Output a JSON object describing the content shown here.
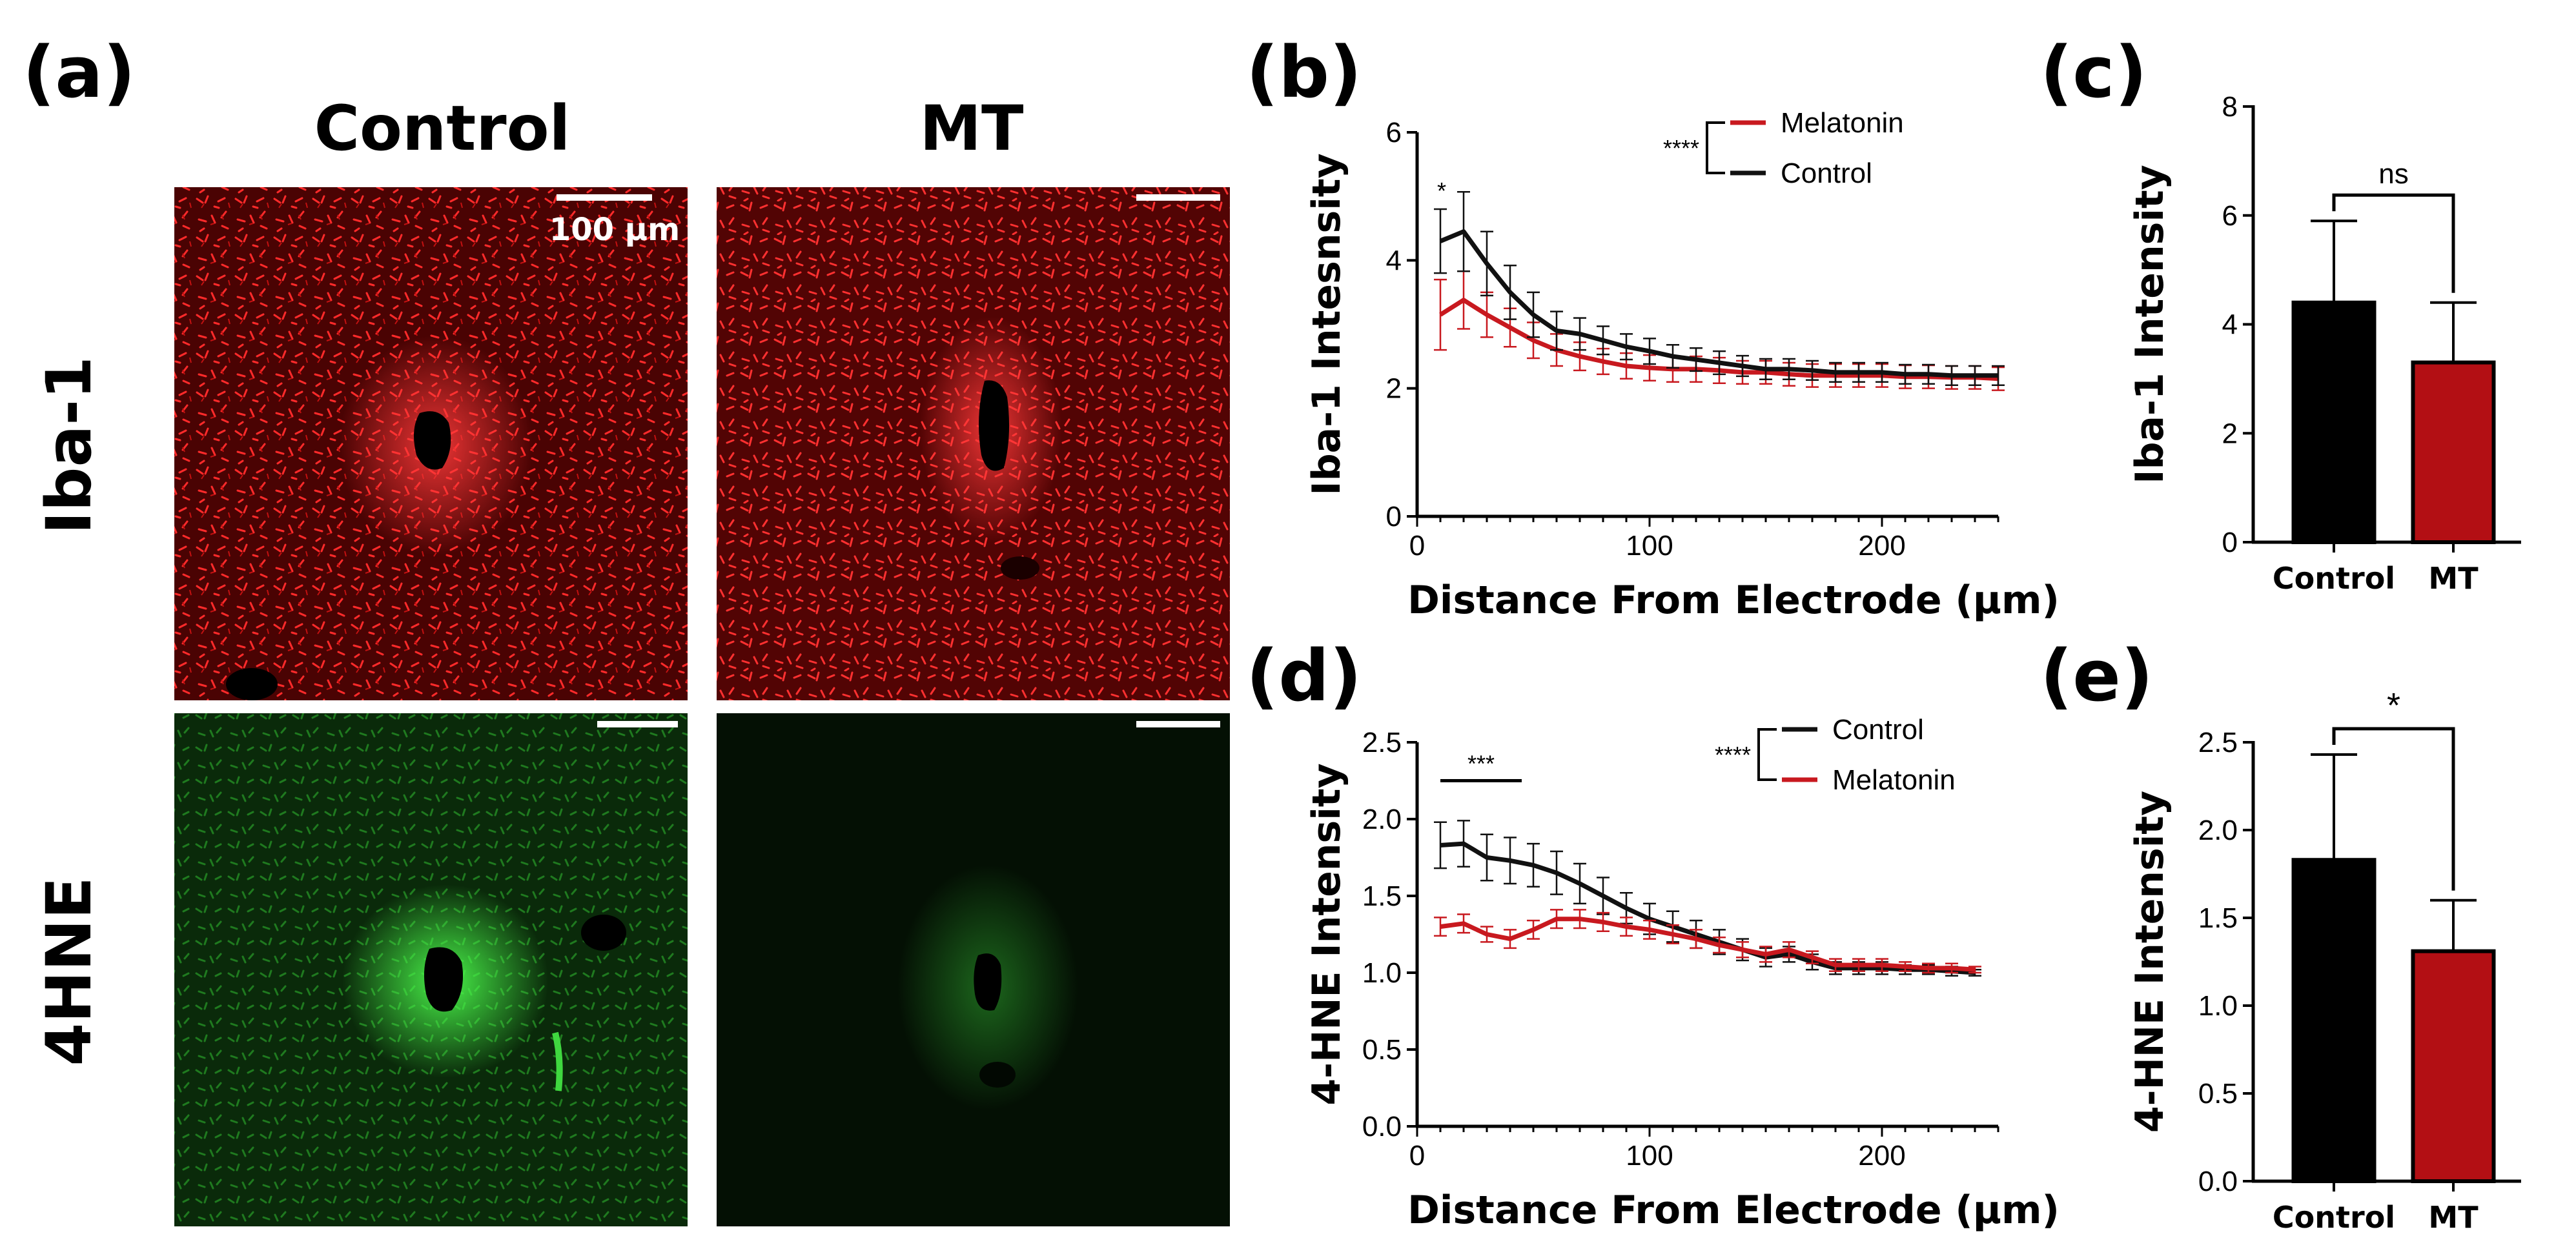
{
  "panels": {
    "a": "(a)",
    "b": "(b)",
    "c": "(c)",
    "d": "(d)",
    "e": "(e)"
  },
  "micrographs": {
    "col_headers": [
      "Control",
      "MT"
    ],
    "row_labels": [
      "Iba-1",
      "4HNE"
    ],
    "scale_bar": "100 µm"
  },
  "colors": {
    "control": "#111111",
    "melatonin": "#c8191f",
    "bar_control": "#000000",
    "bar_mt": "#b30f14",
    "iba_bg": "#4a0303",
    "iba_fg": "#ff2020",
    "hne_bg": "#041204",
    "hne_fg": "#39e83a"
  },
  "chart_data": [
    {
      "id": "b",
      "type": "line",
      "xlabel": "Distance From Electrode (µm)",
      "ylabel": "Iba-1 Intesnsity",
      "xlim": [
        0,
        250
      ],
      "ylim": [
        0,
        6
      ],
      "xticks": [
        0,
        100,
        200
      ],
      "yticks": [
        0,
        2,
        4,
        6
      ],
      "x": [
        10,
        20,
        30,
        40,
        50,
        60,
        70,
        80,
        90,
        100,
        110,
        120,
        130,
        140,
        150,
        160,
        170,
        180,
        190,
        200,
        210,
        220,
        230,
        240,
        250
      ],
      "series": [
        {
          "name": "Melatonin",
          "color": "#c8191f",
          "values": [
            3.15,
            3.38,
            3.15,
            2.95,
            2.75,
            2.6,
            2.5,
            2.42,
            2.35,
            2.32,
            2.3,
            2.3,
            2.28,
            2.25,
            2.25,
            2.22,
            2.2,
            2.2,
            2.2,
            2.2,
            2.18,
            2.18,
            2.17,
            2.17,
            2.15
          ],
          "errors": [
            0.55,
            0.45,
            0.35,
            0.3,
            0.28,
            0.25,
            0.22,
            0.2,
            0.2,
            0.2,
            0.2,
            0.2,
            0.2,
            0.18,
            0.18,
            0.18,
            0.18,
            0.18,
            0.18,
            0.18,
            0.18,
            0.18,
            0.18,
            0.18,
            0.18
          ]
        },
        {
          "name": "Control",
          "color": "#111111",
          "values": [
            4.3,
            4.45,
            3.95,
            3.5,
            3.15,
            2.9,
            2.85,
            2.75,
            2.65,
            2.58,
            2.5,
            2.45,
            2.4,
            2.35,
            2.3,
            2.3,
            2.28,
            2.25,
            2.25,
            2.25,
            2.22,
            2.22,
            2.2,
            2.2,
            2.2
          ],
          "errors": [
            0.5,
            0.62,
            0.5,
            0.42,
            0.35,
            0.3,
            0.25,
            0.22,
            0.2,
            0.2,
            0.18,
            0.18,
            0.18,
            0.16,
            0.16,
            0.16,
            0.15,
            0.15,
            0.15,
            0.15,
            0.15,
            0.15,
            0.15,
            0.15,
            0.15
          ]
        }
      ],
      "legend_order": [
        "Melatonin",
        "Control"
      ],
      "legend_sig": "****",
      "annotation": "*"
    },
    {
      "id": "c",
      "type": "bar",
      "ylabel": "Iba-1 Intensity",
      "ylim": [
        0,
        8
      ],
      "yticks": [
        0,
        2,
        4,
        6,
        8
      ],
      "categories": [
        "Control",
        "MT"
      ],
      "values": [
        4.4,
        3.3
      ],
      "errors": [
        1.5,
        1.1
      ],
      "significance": "ns"
    },
    {
      "id": "d",
      "type": "line",
      "xlabel": "Distance From Electrode (µm)",
      "ylabel": "4-HNE Intensity",
      "xlim": [
        0,
        250
      ],
      "ylim": [
        0,
        2.5
      ],
      "xticks": [
        0,
        100,
        200
      ],
      "yticks": [
        "0.0",
        "0.5",
        "1.0",
        "1.5",
        "2.0",
        "2.5"
      ],
      "x": [
        10,
        20,
        30,
        40,
        50,
        60,
        70,
        80,
        90,
        100,
        110,
        120,
        130,
        140,
        150,
        160,
        170,
        180,
        190,
        200,
        210,
        220,
        230,
        240
      ],
      "series": [
        {
          "name": "Control",
          "color": "#111111",
          "values": [
            1.83,
            1.84,
            1.75,
            1.73,
            1.7,
            1.65,
            1.58,
            1.5,
            1.42,
            1.35,
            1.3,
            1.25,
            1.2,
            1.15,
            1.1,
            1.12,
            1.07,
            1.03,
            1.03,
            1.03,
            1.02,
            1.02,
            1.01,
            1.0
          ],
          "errors": [
            0.15,
            0.15,
            0.15,
            0.15,
            0.14,
            0.14,
            0.13,
            0.12,
            0.1,
            0.1,
            0.1,
            0.09,
            0.08,
            0.07,
            0.06,
            0.05,
            0.05,
            0.04,
            0.04,
            0.04,
            0.03,
            0.03,
            0.03,
            0.02
          ]
        },
        {
          "name": "Melatonin",
          "color": "#c8191f",
          "values": [
            1.3,
            1.32,
            1.25,
            1.22,
            1.28,
            1.35,
            1.35,
            1.33,
            1.3,
            1.28,
            1.25,
            1.22,
            1.18,
            1.15,
            1.12,
            1.15,
            1.1,
            1.05,
            1.05,
            1.05,
            1.04,
            1.03,
            1.03,
            1.02
          ],
          "errors": [
            0.06,
            0.06,
            0.05,
            0.06,
            0.06,
            0.06,
            0.06,
            0.06,
            0.06,
            0.06,
            0.06,
            0.06,
            0.05,
            0.05,
            0.05,
            0.05,
            0.04,
            0.04,
            0.04,
            0.04,
            0.03,
            0.03,
            0.03,
            0.02
          ]
        }
      ],
      "legend_order": [
        "Control",
        "Melatonin"
      ],
      "legend_sig": "****",
      "annotation": "***",
      "annotation_range": [
        10,
        45
      ]
    },
    {
      "id": "e",
      "type": "bar",
      "ylabel": "4-HNE Intensity",
      "ylim": [
        0,
        2.5
      ],
      "yticks": [
        "0.0",
        "0.5",
        "1.0",
        "1.5",
        "2.0",
        "2.5"
      ],
      "categories": [
        "Control",
        "MT"
      ],
      "values": [
        1.83,
        1.31
      ],
      "errors": [
        0.6,
        0.29
      ],
      "significance": "*"
    }
  ]
}
